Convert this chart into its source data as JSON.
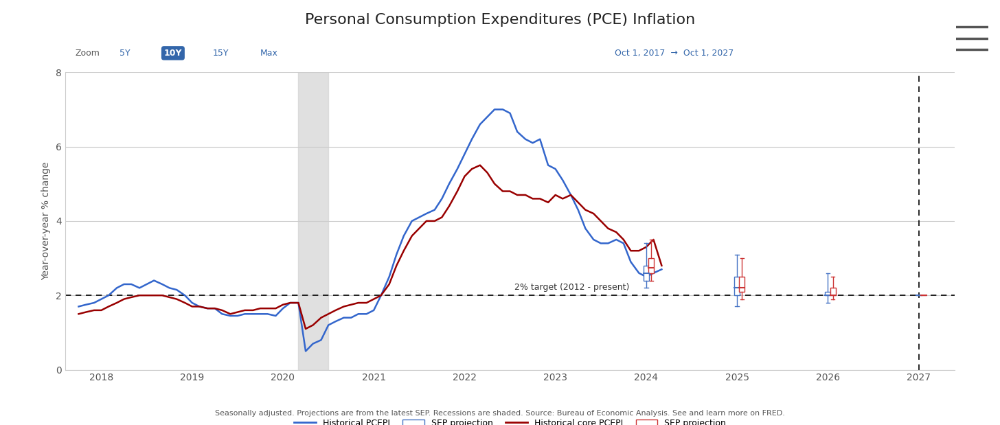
{
  "title": "Personal Consumption Expenditures (PCE) Inflation",
  "ylabel": "Year-over-year % change",
  "target_label": "2% target (2012 - present)",
  "target_value": 2.0,
  "recession_start": 2020.17,
  "recession_end": 2020.5,
  "dashed_line_x": 2027.0,
  "date_range": "Oct 1, 2017  →  Oct 1, 2027",
  "ylim": [
    0,
    8
  ],
  "yticks": [
    0,
    2,
    4,
    6,
    8
  ],
  "pcepi_color": "#3366cc",
  "core_color": "#990000",
  "sep_blue_color": "#4472c4",
  "sep_red_color": "#cc3333",
  "recession_color": "#d3d3d3",
  "background_color": "#ffffff",
  "grid_color": "#cccccc",
  "hist_pcepi": {
    "dates": [
      2017.75,
      2017.83,
      2017.92,
      2018.0,
      2018.08,
      2018.17,
      2018.25,
      2018.33,
      2018.42,
      2018.5,
      2018.58,
      2018.67,
      2018.75,
      2018.83,
      2018.92,
      2019.0,
      2019.08,
      2019.17,
      2019.25,
      2019.33,
      2019.42,
      2019.5,
      2019.58,
      2019.67,
      2019.75,
      2019.83,
      2019.92,
      2020.0,
      2020.08,
      2020.17,
      2020.25,
      2020.33,
      2020.42,
      2020.5,
      2020.58,
      2020.67,
      2020.75,
      2020.83,
      2020.92,
      2021.0,
      2021.08,
      2021.17,
      2021.25,
      2021.33,
      2021.42,
      2021.5,
      2021.58,
      2021.67,
      2021.75,
      2021.83,
      2021.92,
      2022.0,
      2022.08,
      2022.17,
      2022.25,
      2022.33,
      2022.42,
      2022.5,
      2022.58,
      2022.67,
      2022.75,
      2022.83,
      2022.92,
      2023.0,
      2023.08,
      2023.17,
      2023.25,
      2023.33,
      2023.42,
      2023.5,
      2023.58,
      2023.67,
      2023.75,
      2023.83,
      2023.92,
      2024.0,
      2024.08,
      2024.17
    ],
    "values": [
      1.7,
      1.75,
      1.8,
      1.9,
      2.0,
      2.2,
      2.3,
      2.3,
      2.2,
      2.3,
      2.4,
      2.3,
      2.2,
      2.15,
      2.0,
      1.8,
      1.7,
      1.65,
      1.65,
      1.5,
      1.45,
      1.45,
      1.5,
      1.5,
      1.5,
      1.5,
      1.45,
      1.65,
      1.8,
      1.8,
      0.5,
      0.7,
      0.8,
      1.2,
      1.3,
      1.4,
      1.4,
      1.5,
      1.5,
      1.6,
      2.0,
      2.5,
      3.1,
      3.6,
      4.0,
      4.1,
      4.2,
      4.3,
      4.6,
      5.0,
      5.4,
      5.8,
      6.2,
      6.6,
      6.8,
      7.0,
      7.0,
      6.9,
      6.4,
      6.2,
      6.1,
      6.2,
      5.5,
      5.4,
      5.1,
      4.7,
      4.3,
      3.8,
      3.5,
      3.4,
      3.4,
      3.5,
      3.4,
      2.9,
      2.6,
      2.5,
      2.6,
      2.7
    ],
    "label": "Historical PCEPI"
  },
  "hist_core": {
    "dates": [
      2017.75,
      2017.83,
      2017.92,
      2018.0,
      2018.08,
      2018.17,
      2018.25,
      2018.33,
      2018.42,
      2018.5,
      2018.58,
      2018.67,
      2018.75,
      2018.83,
      2018.92,
      2019.0,
      2019.08,
      2019.17,
      2019.25,
      2019.33,
      2019.42,
      2019.5,
      2019.58,
      2019.67,
      2019.75,
      2019.83,
      2019.92,
      2020.0,
      2020.08,
      2020.17,
      2020.25,
      2020.33,
      2020.42,
      2020.5,
      2020.58,
      2020.67,
      2020.75,
      2020.83,
      2020.92,
      2021.0,
      2021.08,
      2021.17,
      2021.25,
      2021.33,
      2021.42,
      2021.5,
      2021.58,
      2021.67,
      2021.75,
      2021.83,
      2021.92,
      2022.0,
      2022.08,
      2022.17,
      2022.25,
      2022.33,
      2022.42,
      2022.5,
      2022.58,
      2022.67,
      2022.75,
      2022.83,
      2022.92,
      2023.0,
      2023.08,
      2023.17,
      2023.25,
      2023.33,
      2023.42,
      2023.5,
      2023.58,
      2023.67,
      2023.75,
      2023.83,
      2023.92,
      2024.0,
      2024.08,
      2024.17
    ],
    "values": [
      1.5,
      1.55,
      1.6,
      1.6,
      1.7,
      1.8,
      1.9,
      1.95,
      2.0,
      2.0,
      2.0,
      2.0,
      1.95,
      1.9,
      1.8,
      1.7,
      1.7,
      1.65,
      1.65,
      1.6,
      1.5,
      1.55,
      1.6,
      1.6,
      1.65,
      1.65,
      1.65,
      1.75,
      1.8,
      1.8,
      1.1,
      1.2,
      1.4,
      1.5,
      1.6,
      1.7,
      1.75,
      1.8,
      1.8,
      1.9,
      2.0,
      2.3,
      2.8,
      3.2,
      3.6,
      3.8,
      4.0,
      4.0,
      4.1,
      4.4,
      4.8,
      5.2,
      5.4,
      5.5,
      5.3,
      5.0,
      4.8,
      4.8,
      4.7,
      4.7,
      4.6,
      4.6,
      4.5,
      4.7,
      4.6,
      4.7,
      4.5,
      4.3,
      4.2,
      4.0,
      3.8,
      3.7,
      3.5,
      3.2,
      3.2,
      3.3,
      3.5,
      2.8
    ],
    "label": "Historical core PCEPI"
  },
  "sep_pcepi_projections": [
    {
      "year": 2024.0,
      "median": 2.6,
      "q1": 2.4,
      "q3": 2.8,
      "whisker_low": 2.2,
      "whisker_high": 3.4
    },
    {
      "year": 2025.0,
      "median": 2.2,
      "q1": 2.0,
      "q3": 2.5,
      "whisker_low": 1.7,
      "whisker_high": 3.1
    },
    {
      "year": 2026.0,
      "median": 2.0,
      "q1": 2.0,
      "q3": 2.1,
      "whisker_low": 1.8,
      "whisker_high": 2.6
    },
    {
      "year": 2027.0,
      "median": 2.0,
      "q1": 2.0,
      "q3": 2.0,
      "whisker_low": 2.0,
      "whisker_high": 2.0
    }
  ],
  "sep_core_projections": [
    {
      "year": 2024.0,
      "median": 2.75,
      "q1": 2.6,
      "q3": 3.0,
      "whisker_low": 2.4,
      "whisker_high": 3.5
    },
    {
      "year": 2025.0,
      "median": 2.2,
      "q1": 2.1,
      "q3": 2.5,
      "whisker_low": 1.9,
      "whisker_high": 3.0
    },
    {
      "year": 2026.0,
      "median": 2.0,
      "q1": 2.0,
      "q3": 2.2,
      "whisker_low": 1.9,
      "whisker_high": 2.5
    },
    {
      "year": 2027.0,
      "median": 2.0,
      "q1": 2.0,
      "q3": 2.0,
      "whisker_low": 2.0,
      "whisker_high": 2.0
    }
  ],
  "xtick_years": [
    2018,
    2019,
    2020,
    2021,
    2022,
    2023,
    2024,
    2025,
    2026,
    2027
  ],
  "zoom_buttons": [
    "5Y",
    "10Y",
    "15Y",
    "Max"
  ],
  "active_zoom": "10Y",
  "footer_text": "Seasonally adjusted. Projections are from the latest SEP. Recessions are shaded. Source: Bureau of Economic Analysis. See and learn more on FRED.",
  "box_width": 0.06
}
